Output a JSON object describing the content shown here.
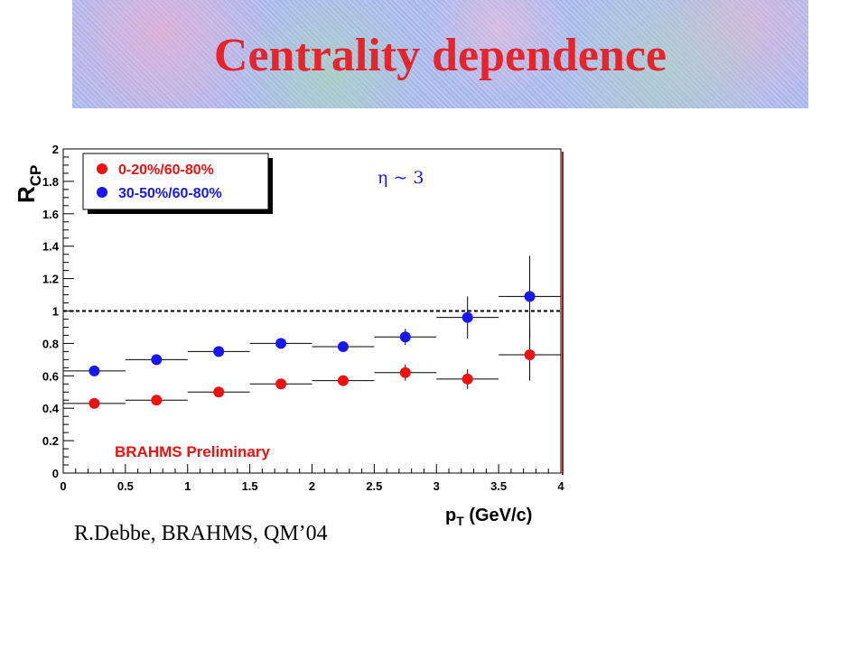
{
  "slide": {
    "title": "Centrality dependence",
    "credit": "R.Debbe, BRAHMS, QM’04"
  },
  "chart_data": {
    "type": "scatter",
    "title": "",
    "annotation": "η ~ 3",
    "watermark": "BRAHMS Preliminary",
    "xlabel": "p_T (GeV/c)",
    "ylabel": "R_CP",
    "xlim": [
      0,
      4
    ],
    "ylim": [
      0,
      2
    ],
    "xticks": [
      "0",
      "0.5",
      "1",
      "1.5",
      "2",
      "2.5",
      "3",
      "3.5",
      "4"
    ],
    "yticks": [
      "0",
      "0.2",
      "0.4",
      "0.6",
      "0.8",
      "1",
      "1.2",
      "1.4",
      "1.6",
      "1.8",
      "2"
    ],
    "reference_line": 1,
    "legend_position": "top-left",
    "grid": false,
    "bin_half_width": 0.25,
    "series": [
      {
        "name": "0-20%/60-80%",
        "color": "#ee1111",
        "x": [
          0.25,
          0.75,
          1.25,
          1.75,
          2.25,
          2.75,
          3.25,
          3.75
        ],
        "y": [
          0.43,
          0.45,
          0.5,
          0.55,
          0.57,
          0.62,
          0.58,
          0.73
        ],
        "yerr": [
          0.02,
          0.02,
          0.02,
          0.02,
          0.03,
          0.05,
          0.06,
          0.16
        ]
      },
      {
        "name": "30-50%/60-80%",
        "color": "#1818ee",
        "x": [
          0.25,
          0.75,
          1.25,
          1.75,
          2.25,
          2.75,
          3.25,
          3.75
        ],
        "y": [
          0.63,
          0.7,
          0.75,
          0.8,
          0.78,
          0.84,
          0.96,
          1.09
        ],
        "yerr": [
          0.02,
          0.02,
          0.02,
          0.02,
          0.03,
          0.05,
          0.13,
          0.25
        ]
      }
    ]
  }
}
